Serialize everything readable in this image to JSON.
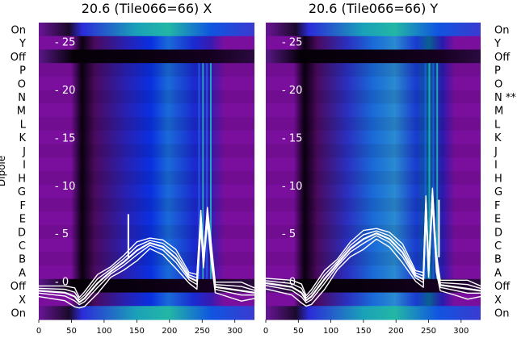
{
  "chart_data": [
    {
      "type": "heatmap",
      "title": "20.6 (Tile066=66) X",
      "ylabel": "Dipole",
      "xlim": [
        0,
        330
      ],
      "ylim": [
        -4,
        27
      ],
      "x_ticks": [
        0,
        50,
        100,
        150,
        200,
        250,
        300
      ],
      "y_ticks": [
        0,
        5,
        10,
        15,
        20,
        25
      ],
      "rows": [
        "On",
        "Y",
        "Off",
        "P",
        "O",
        "N",
        "M",
        "L",
        "K",
        "J",
        "I",
        "H",
        "G",
        "F",
        "E",
        "D",
        "C",
        "B",
        "A",
        "Off",
        "X",
        "On"
      ],
      "line_series": {
        "x": [
          0,
          40,
          55,
          62,
          70,
          90,
          110,
          130,
          150,
          170,
          190,
          210,
          230,
          242,
          248,
          252,
          258,
          264,
          270,
          290,
          310,
          330
        ],
        "y": [
          -1.0,
          -1.2,
          -1.6,
          -2.2,
          -1.8,
          -0.2,
          1.0,
          2.0,
          3.2,
          4.0,
          3.6,
          2.4,
          0.4,
          0.0,
          6.5,
          2.0,
          7.0,
          3.0,
          -0.6,
          -0.8,
          -1.0,
          -1.2
        ],
        "spike": {
          "x": 137,
          "y": 7.0
        }
      }
    },
    {
      "type": "heatmap",
      "title": "20.6 (Tile066=66) Y",
      "xlim": [
        0,
        330
      ],
      "ylim": [
        -4,
        27
      ],
      "x_ticks": [
        0,
        50,
        100,
        150,
        200,
        250,
        300
      ],
      "y_ticks": [
        0,
        5,
        10,
        15,
        20,
        25
      ],
      "rows": [
        "On",
        "Y",
        "Off",
        "P",
        "O",
        "N **",
        "M",
        "L",
        "K",
        "J",
        "I",
        "H",
        "G",
        "F",
        "E",
        "D",
        "C",
        "B",
        "A",
        "Off",
        "X",
        "On"
      ],
      "line_series": {
        "x": [
          0,
          40,
          55,
          62,
          70,
          90,
          110,
          130,
          150,
          170,
          190,
          210,
          230,
          242,
          246,
          250,
          256,
          262,
          268,
          290,
          310,
          330
        ],
        "y": [
          -0.2,
          -0.6,
          -1.2,
          -2.0,
          -1.6,
          0.2,
          1.8,
          3.4,
          4.4,
          5.0,
          4.4,
          3.0,
          0.6,
          0.2,
          8.0,
          1.0,
          9.0,
          2.0,
          -0.4,
          -0.6,
          -0.8,
          -1.0
        ],
        "spike": {
          "x": 266,
          "y": 8.5
        }
      }
    }
  ],
  "colors": {
    "accent": "#0033ee",
    "purple": "#7a0f9e",
    "teal": "#16b0a0",
    "line": "#ffffff"
  }
}
